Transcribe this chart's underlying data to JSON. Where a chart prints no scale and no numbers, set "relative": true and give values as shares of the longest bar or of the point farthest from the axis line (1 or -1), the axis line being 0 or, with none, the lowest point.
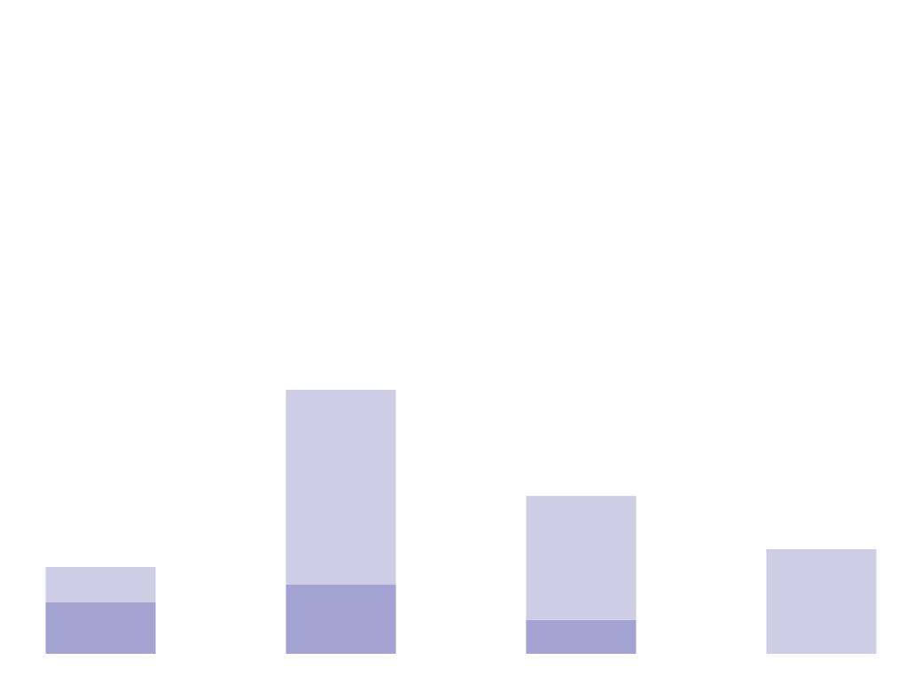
{
  "chart_data": {
    "type": "bar",
    "relative": true,
    "stacked": true,
    "categories": [
      null,
      null,
      null,
      null
    ],
    "series": [
      {
        "color": "#a3a3d1",
        "values": [
          0.195,
          0.262,
          0.128,
          0
        ]
      },
      {
        "color": "#cdcde6",
        "values": [
          0.134,
          0.738,
          0.47,
          0.396
        ]
      }
    ]
  }
}
